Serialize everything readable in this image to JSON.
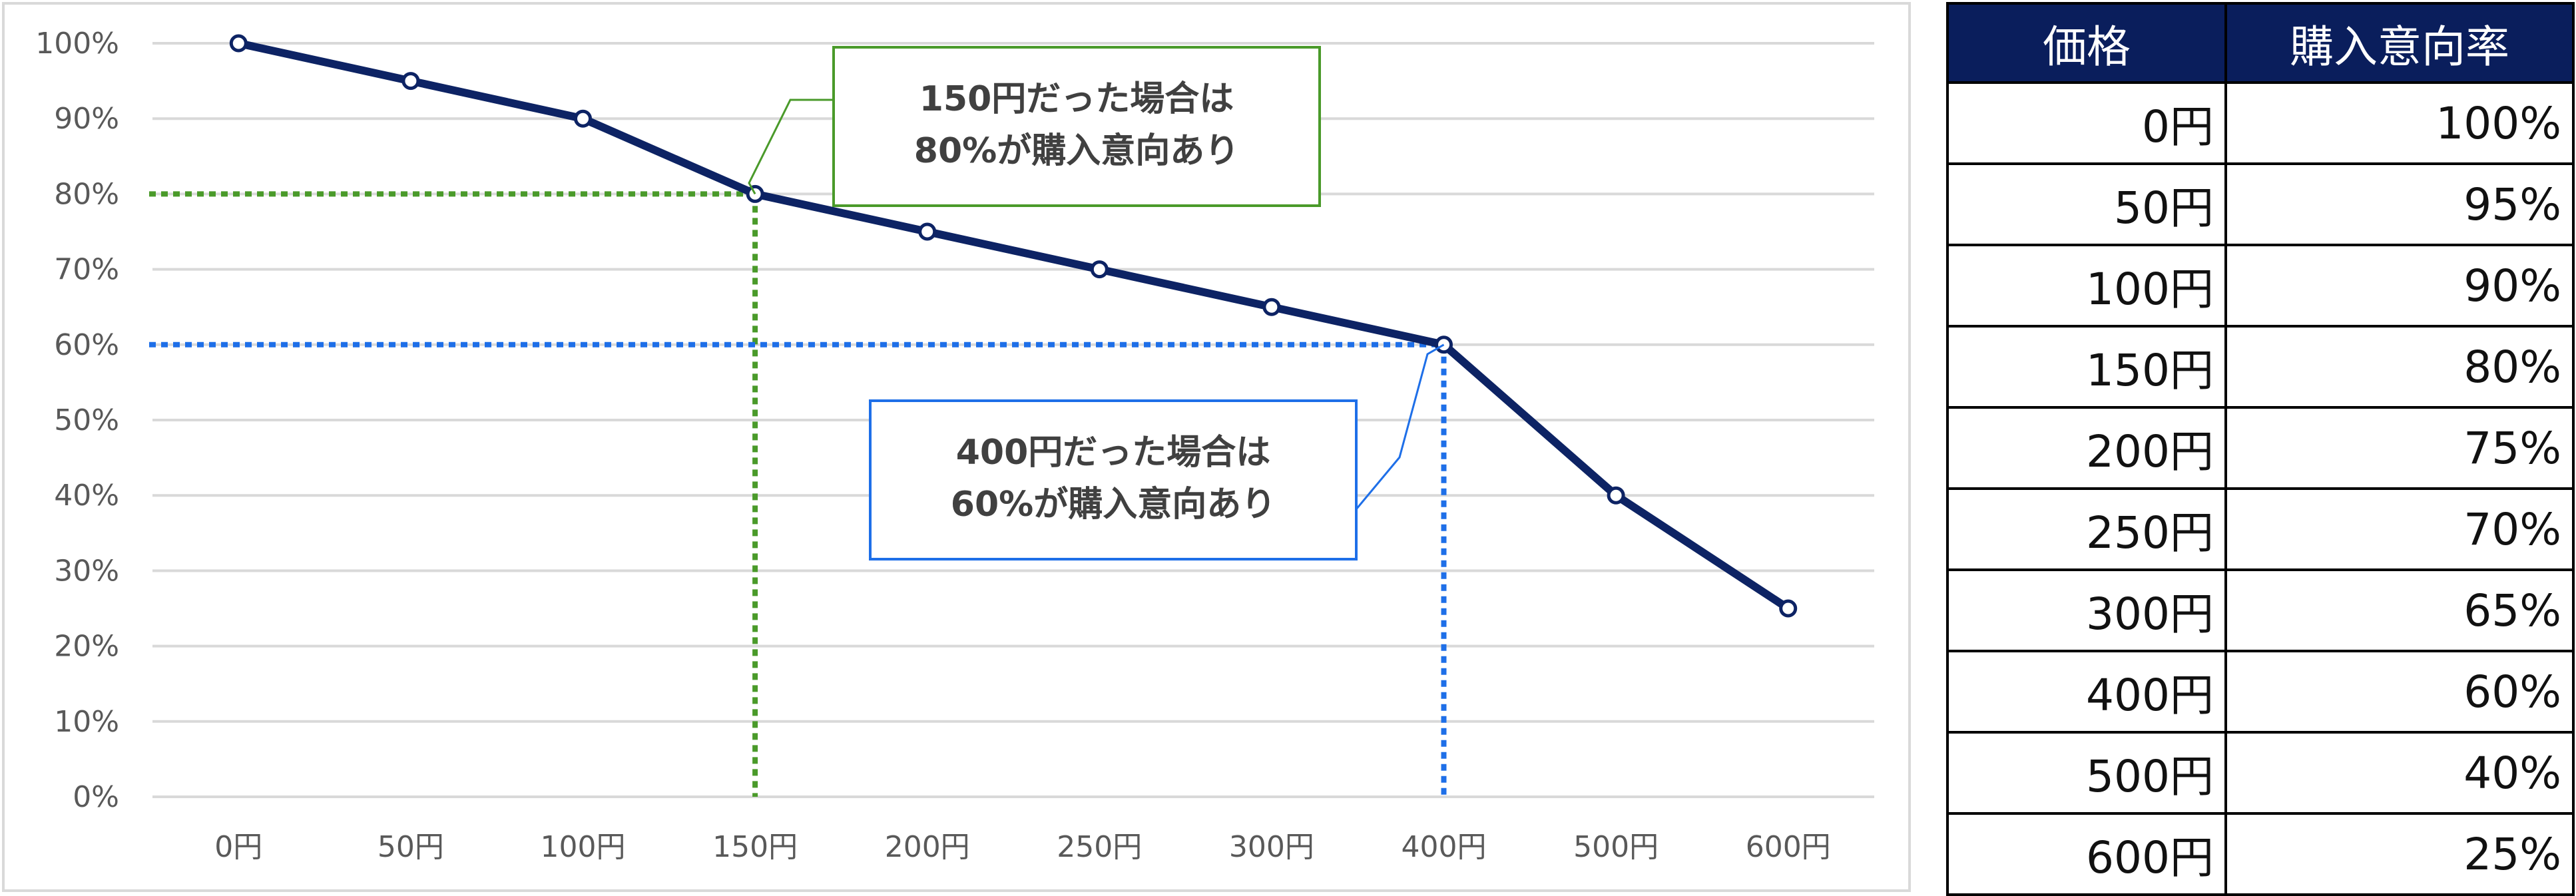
{
  "chart_data": {
    "type": "line",
    "categories": [
      "0円",
      "50円",
      "100円",
      "150円",
      "200円",
      "250円",
      "300円",
      "400円",
      "500円",
      "600円"
    ],
    "series": [
      {
        "values": [
          100,
          95,
          90,
          80,
          75,
          70,
          65,
          60,
          40,
          25
        ]
      }
    ],
    "title": "",
    "xlabel": "",
    "ylabel": "",
    "ylim": [
      0,
      100
    ],
    "ytick_labels": [
      "0%",
      "10%",
      "20%",
      "30%",
      "40%",
      "50%",
      "60%",
      "70%",
      "80%",
      "90%",
      "100%"
    ],
    "grid": true,
    "line_color": "#0d2364",
    "annotations": [
      {
        "category": "150円",
        "value": 80,
        "text": [
          "150円だった場合は",
          "80%が購入意向あり"
        ],
        "color": "#4a9a2a"
      },
      {
        "category": "400円",
        "value": 60,
        "text": [
          "400円だった場合は",
          "60%が購入意向あり"
        ],
        "color": "#1e6fe8"
      }
    ]
  },
  "table": {
    "headers": [
      "価格",
      "購入意向率"
    ],
    "rows": [
      [
        "0円",
        "100%"
      ],
      [
        "50円",
        "95%"
      ],
      [
        "100円",
        "90%"
      ],
      [
        "150円",
        "80%"
      ],
      [
        "200円",
        "75%"
      ],
      [
        "250円",
        "70%"
      ],
      [
        "300円",
        "65%"
      ],
      [
        "400円",
        "60%"
      ],
      [
        "500円",
        "40%"
      ],
      [
        "600円",
        "25%"
      ]
    ],
    "header_bg": "#0a1e5c"
  }
}
